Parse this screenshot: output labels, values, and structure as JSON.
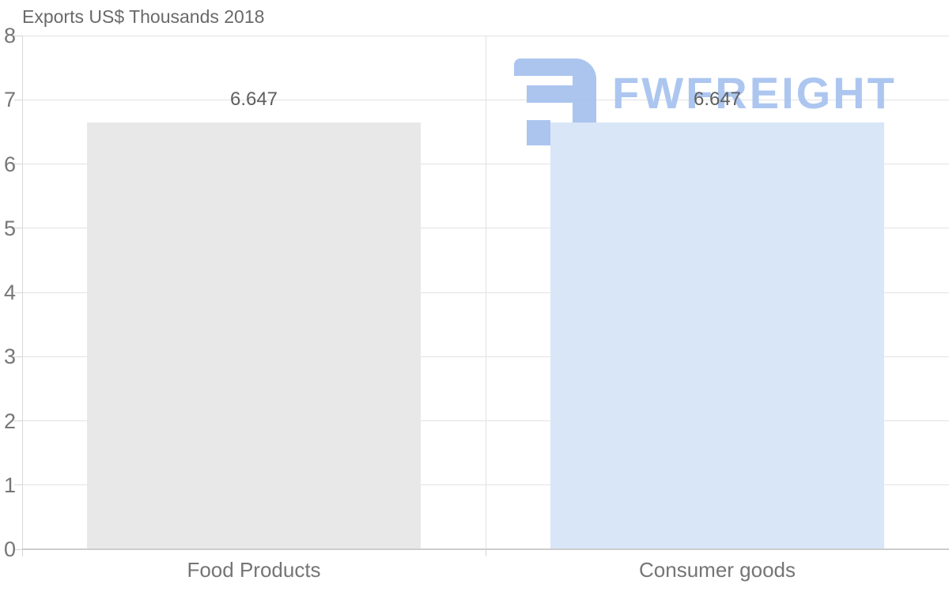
{
  "title": "Exports US$ Thousands 2018",
  "watermark": {
    "brand": "FWFREIGHT",
    "color": "#a6c2ef"
  },
  "chart_data": {
    "type": "bar",
    "title": "Exports US$ Thousands 2018",
    "categories": [
      "Food Products",
      "Consumer goods"
    ],
    "values": [
      6.647,
      6.647
    ],
    "value_labels": [
      "6.647",
      "6.647"
    ],
    "bar_colors": [
      "#e8e8e8",
      "#d9e6f8"
    ],
    "xlabel": "",
    "ylabel": "",
    "ylim": [
      0,
      8
    ],
    "y_interval": 1,
    "y_ticks": [
      "0",
      "1",
      "2",
      "3",
      "4",
      "5",
      "6",
      "7",
      "8"
    ],
    "grid": true,
    "legend": "none",
    "label_color": "#5f5f5f",
    "axis_label_color": "#767676"
  }
}
